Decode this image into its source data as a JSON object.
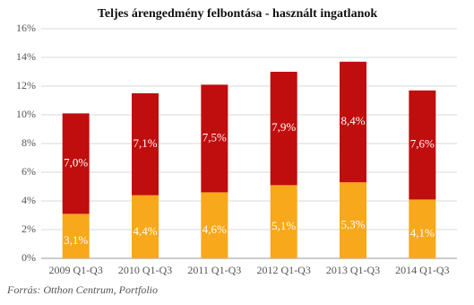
{
  "chart_data": {
    "type": "stacked_bar",
    "title": "Teljes árengedmény felbontása - használt ingatlanok",
    "categories": [
      "2009 Q1-Q3",
      "2010 Q1-Q3",
      "2011 Q1-Q3",
      "2012 Q1-Q3",
      "2013 Q1-Q3",
      "2014 Q1-Q3"
    ],
    "series": [
      {
        "color": "#f7a81b",
        "values": [
          3.1,
          4.4,
          4.6,
          5.1,
          5.3,
          4.1
        ],
        "value_labels": [
          "3,1%",
          "4,4%",
          "4,6%",
          "5,1%",
          "5,3%",
          "4,1%"
        ]
      },
      {
        "color": "#c00d0d",
        "values": [
          7.0,
          7.1,
          7.5,
          7.9,
          8.4,
          7.6
        ],
        "value_labels": [
          "7,0%",
          "7,1%",
          "7,5%",
          "7,9%",
          "8,4%",
          "7,6%"
        ]
      }
    ],
    "ylim": [
      0,
      16
    ],
    "yticks": [
      {
        "value": 0,
        "label": "0%"
      },
      {
        "value": 2,
        "label": "2%"
      },
      {
        "value": 4,
        "label": "4%"
      },
      {
        "value": 6,
        "label": "6%"
      },
      {
        "value": 8,
        "label": "8%"
      },
      {
        "value": 10,
        "label": "10%"
      },
      {
        "value": 12,
        "label": "12%"
      },
      {
        "value": 14,
        "label": "14%"
      },
      {
        "value": 16,
        "label": "16%"
      }
    ],
    "grid": true,
    "source": "Forrás: Otthon Centrum, Portfolio"
  }
}
